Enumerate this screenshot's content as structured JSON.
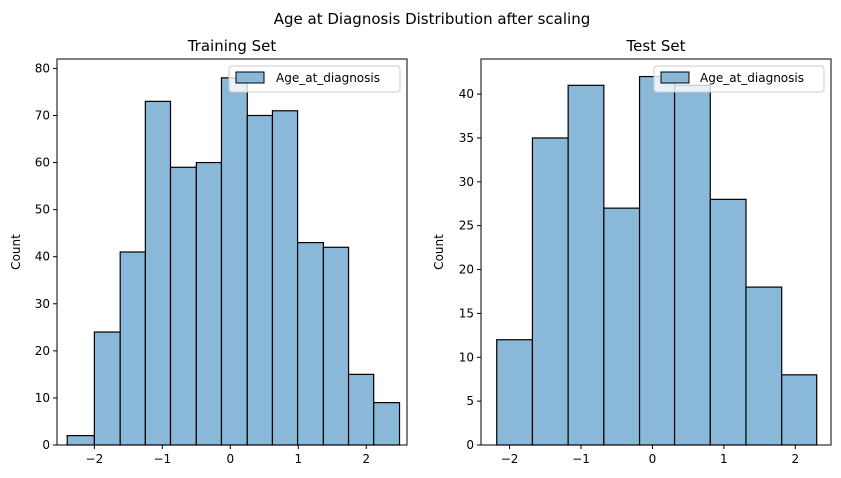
{
  "figure": {
    "suptitle": "Age at Diagnosis Distribution after scaling"
  },
  "colors": {
    "bar_fill": "#8ab8d9",
    "bar_edge": "#000000",
    "background": "#ffffff"
  },
  "chart_data": [
    {
      "type": "bar",
      "title": "Training Set",
      "xlabel": "",
      "ylabel": "Count",
      "legend": {
        "label": "Age_at_diagnosis",
        "position": "top-right"
      },
      "xlim": [
        -2.55,
        2.6
      ],
      "ylim": [
        0,
        82
      ],
      "xticks": [
        -2,
        -1,
        0,
        1,
        2
      ],
      "xtick_labels": [
        "−2",
        "−1",
        "0",
        "1",
        "2"
      ],
      "yticks": [
        0,
        10,
        20,
        30,
        40,
        50,
        60,
        70,
        80
      ],
      "ytick_labels": [
        "0",
        "10",
        "20",
        "30",
        "40",
        "50",
        "60",
        "70",
        "80"
      ],
      "bin_edges": [
        -2.4,
        -2.0,
        -1.62,
        -1.25,
        -0.88,
        -0.5,
        -0.13,
        0.25,
        0.62,
        0.99,
        1.37,
        1.74,
        2.11,
        2.49
      ],
      "values": [
        2,
        24,
        41,
        73,
        59,
        60,
        78,
        70,
        71,
        43,
        42,
        15,
        9
      ]
    },
    {
      "type": "bar",
      "title": "Test Set",
      "xlabel": "",
      "ylabel": "Count",
      "legend": {
        "label": "Age_at_diagnosis",
        "position": "top-right"
      },
      "xlim": [
        -2.4,
        2.5
      ],
      "ylim": [
        0,
        44
      ],
      "xticks": [
        -2,
        -1,
        0,
        1,
        2
      ],
      "xtick_labels": [
        "−2",
        "−1",
        "0",
        "1",
        "2"
      ],
      "yticks": [
        0,
        5,
        10,
        15,
        20,
        25,
        30,
        35,
        40
      ],
      "ytick_labels": [
        "0",
        "5",
        "10",
        "15",
        "20",
        "25",
        "30",
        "35",
        "40"
      ],
      "bin_edges": [
        -2.18,
        -1.68,
        -1.18,
        -0.68,
        -0.18,
        0.31,
        0.81,
        1.31,
        1.81,
        2.3
      ],
      "values": [
        12,
        35,
        41,
        27,
        42,
        41,
        28,
        18,
        8
      ]
    }
  ]
}
